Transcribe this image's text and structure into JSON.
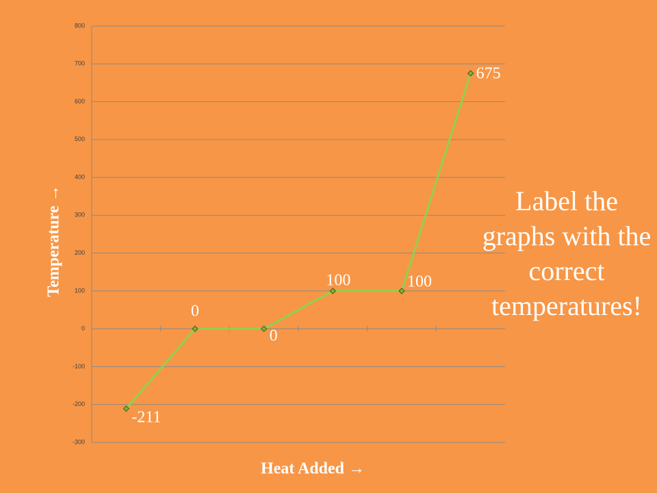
{
  "chart_data": {
    "type": "line",
    "x_label": "Heat Added →",
    "y_label": "Temperature →",
    "annotation": "Label the graphs with the correct temperatures!",
    "categories": [
      null,
      null,
      null,
      null,
      null,
      null
    ],
    "values": [
      -211,
      0,
      0,
      100,
      100,
      675
    ],
    "color": "#92d050",
    "marker_color": "#7fb13a",
    "data_labels": true,
    "ylim": [
      -300,
      800
    ],
    "yticks": [
      -300,
      -200,
      -100,
      0,
      100,
      200,
      300,
      400,
      500,
      600,
      700,
      800
    ],
    "grid": true
  }
}
